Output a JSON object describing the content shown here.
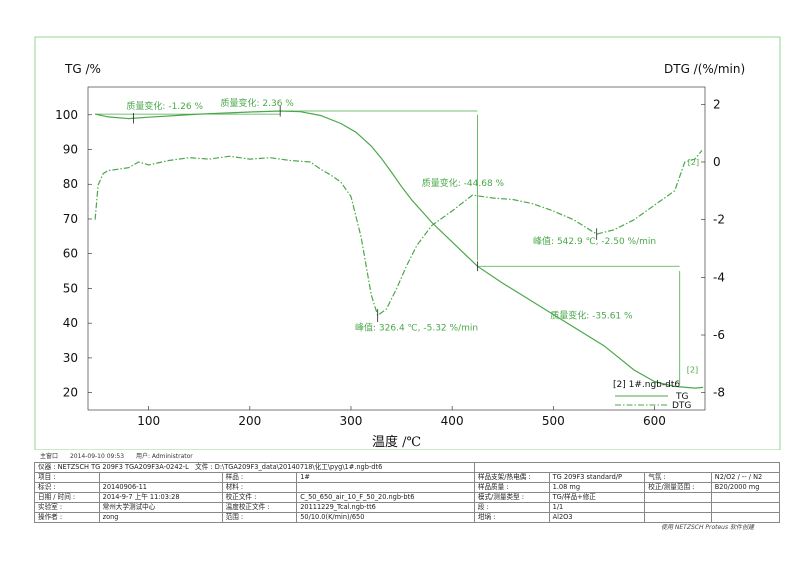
{
  "chart_data": {
    "type": "line",
    "y_left_label": "TG /%",
    "y_right_label": "DTG /(%/min)",
    "xlabel": "温度 /℃",
    "xlim": [
      40,
      650
    ],
    "ylim_left": [
      15,
      108
    ],
    "ylim_right": [
      -8.6,
      2.6
    ],
    "xticks": [
      100,
      200,
      300,
      400,
      500,
      600
    ],
    "yticks_left": [
      20,
      30,
      40,
      50,
      60,
      70,
      80,
      90,
      100
    ],
    "yticks_right": [
      2,
      0,
      -2,
      -4,
      -6,
      -8
    ],
    "series": [
      {
        "name": "TG",
        "axis": "left",
        "style": "solid",
        "x": [
          47,
          60,
          80,
          100,
          150,
          200,
          230,
          250,
          270,
          290,
          305,
          320,
          330,
          340,
          350,
          360,
          380,
          400,
          425,
          450,
          500,
          550,
          580,
          600,
          620,
          640,
          648
        ],
        "y": [
          100.2,
          99.4,
          98.9,
          99.3,
          100.2,
          100.8,
          101.1,
          100.9,
          99.8,
          97.5,
          95,
          91,
          87.5,
          83.5,
          79.3,
          75.5,
          69,
          63.4,
          56.4,
          51.5,
          42.5,
          33.5,
          26.5,
          23.2,
          21.8,
          21.3,
          21.5
        ]
      },
      {
        "name": "DTG",
        "axis": "right",
        "style": "dash-dot",
        "x": [
          47,
          50,
          55,
          60,
          70,
          80,
          90,
          100,
          120,
          140,
          160,
          180,
          200,
          220,
          240,
          260,
          270,
          280,
          290,
          300,
          310,
          320,
          326.4,
          335,
          345,
          355,
          365,
          380,
          400,
          420,
          440,
          460,
          480,
          500,
          520,
          542.9,
          560,
          580,
          600,
          620,
          630,
          640,
          647
        ],
        "y": [
          -2,
          -0.8,
          -0.4,
          -0.3,
          -0.25,
          -0.2,
          0,
          -0.1,
          0.05,
          0.15,
          0.1,
          0.2,
          0.1,
          0.15,
          0.05,
          0,
          -0.25,
          -0.45,
          -0.7,
          -1.2,
          -2.6,
          -4.6,
          -5.32,
          -5.1,
          -4.4,
          -3.6,
          -2.9,
          -2.2,
          -1.7,
          -1.15,
          -1.25,
          -1.3,
          -1.45,
          -1.7,
          -2.0,
          -2.5,
          -2.35,
          -2.0,
          -1.5,
          -1.0,
          0.0,
          0.1,
          0.4
        ]
      }
    ],
    "annotations": {
      "tg_step1": "质量变化: -1.26 %",
      "tg_step2": "质量变化: 2.36 %",
      "tg_step3": "质量变化: -44.68 %",
      "tg_step4": "质量变化: -35.61 %",
      "peak1": "峰值: 326.4 ℃, -5.32 %/min",
      "peak2": "峰值: 542.9 ℃, -2.50 %/min"
    },
    "legend_title": "[2] 1#.ngb-dt6",
    "legend_items": [
      "TG",
      "DTG"
    ],
    "curve_tag": "[2]",
    "grid": false,
    "legend_position": "bottom-right"
  },
  "footer": {
    "window": "主窗口",
    "datetime": "2014-09-10 09:53",
    "user": "用户: Administrator"
  },
  "info": {
    "instrument_label": "仪器 :",
    "instrument_value": "NETZSCH TG 209F3 TGA209F3A-0242-L",
    "file_label": "文件 :",
    "file_value": "D:\\TGA209F3_data\\20140718\\化工\\pyg\\1#.ngb-dt6",
    "rows": [
      [
        "项目 :",
        "",
        "样品 :",
        "1#",
        "样品支架/热电偶 :",
        "TG 209F3 standard/P",
        "气氛 :",
        "N2/O2 / -- / N2"
      ],
      [
        "标识 :",
        "20140906-11",
        "材料 :",
        "",
        "样品质量 :",
        "1.08 mg",
        "校正/测量范围 :",
        "B20/2000 mg"
      ],
      [
        "日期 / 时间 :",
        "2014-9-7 上午 11:03:28",
        "校正文件 :",
        "C_50_650_air_10_F_50_20.ngb-bt6",
        "模式/测量类型 :",
        "TG/样品+修正",
        "",
        ""
      ],
      [
        "实验室 :",
        "常州大学测试中心",
        "温度校正文件 :",
        "20111229_Tcal.ngb-tt6",
        "段 :",
        "1/1",
        "",
        ""
      ],
      [
        "操作者 :",
        "zong",
        "范围 :",
        "50/10.0(K/min)/650",
        "坩埚 :",
        "Al2O3",
        "",
        ""
      ]
    ],
    "credit": "使用 NETZSCH Proteus 软件创建"
  }
}
